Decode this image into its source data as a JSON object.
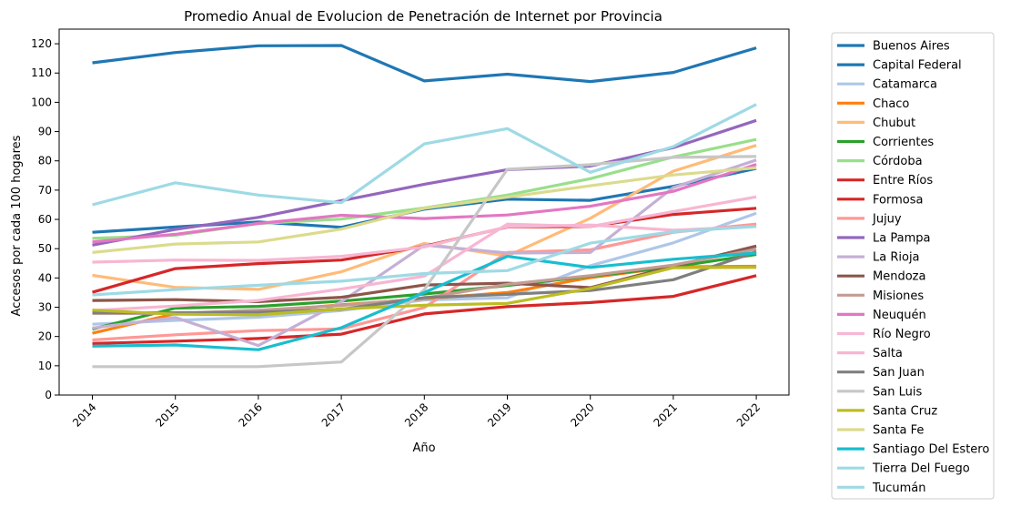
{
  "chart_data": {
    "type": "line",
    "title": "Promedio Anual de Evolucion de Penetración de Internet por Provincia",
    "xlabel": "Año",
    "ylabel": "Accesos por cada 100 hogares",
    "x": [
      "2014",
      "2015",
      "2016",
      "2017",
      "2018",
      "2019",
      "2020",
      "2021",
      "2022"
    ],
    "ylim": [
      0,
      125
    ],
    "yticks": [
      0,
      10,
      20,
      30,
      40,
      50,
      60,
      70,
      80,
      90,
      100,
      110,
      120
    ],
    "grid": false,
    "legend_position": "outside-right",
    "series": [
      {
        "name": "Buenos Aires",
        "color": "#1f77b4",
        "values": [
          55.6,
          57.4,
          59.1,
          57.3,
          63.5,
          66.9,
          66.5,
          71.3,
          77.4
        ]
      },
      {
        "name": "Capital Federal",
        "color": "#1f77b4",
        "values": [
          113.5,
          117.0,
          119.3,
          119.4,
          107.3,
          109.6,
          107.1,
          110.2,
          118.6
        ]
      },
      {
        "name": "Catamarca",
        "color": "#aec7e8",
        "values": [
          24.2,
          25.5,
          26.6,
          28.9,
          32.5,
          33.2,
          44.2,
          52.0,
          62.1
        ]
      },
      {
        "name": "Chaco",
        "color": "#ff7f0e",
        "values": [
          21.1,
          27.8,
          28.5,
          30.8,
          32.9,
          35.0,
          40.1,
          43.8,
          44.0
        ]
      },
      {
        "name": "Chubut",
        "color": "#ffbb78",
        "values": [
          40.9,
          36.8,
          36.1,
          42.1,
          51.8,
          47.5,
          60.4,
          76.5,
          85.3
        ]
      },
      {
        "name": "Corrientes",
        "color": "#2ca02c",
        "values": [
          22.5,
          29.7,
          30.3,
          32.1,
          34.5,
          37.4,
          40.6,
          43.8,
          48.0
        ]
      },
      {
        "name": "Córdoba",
        "color": "#98df8a",
        "values": [
          53.5,
          54.6,
          58.6,
          60.1,
          63.9,
          68.3,
          73.9,
          81.3,
          87.3
        ]
      },
      {
        "name": "Entre Ríos",
        "color": "#d62728",
        "values": [
          35.1,
          43.2,
          44.9,
          46.1,
          50.8,
          57.4,
          57.6,
          61.7,
          63.8
        ]
      },
      {
        "name": "Formosa",
        "color": "#d62728",
        "values": [
          17.6,
          18.4,
          19.3,
          20.8,
          27.7,
          30.2,
          31.6,
          33.7,
          40.8
        ]
      },
      {
        "name": "Jujuy",
        "color": "#ff9896",
        "values": [
          18.8,
          20.6,
          22.0,
          22.6,
          29.9,
          48.7,
          49.6,
          55.6,
          58.4
        ]
      },
      {
        "name": "La Pampa",
        "color": "#9467bd",
        "values": [
          51.2,
          56.6,
          60.7,
          66.4,
          72.0,
          77.0,
          78.2,
          84.5,
          93.8
        ]
      },
      {
        "name": "La Rioja",
        "color": "#c5b0d5",
        "values": [
          22.9,
          26.5,
          16.9,
          31.9,
          51.2,
          48.5,
          48.7,
          70.9,
          80.3
        ]
      },
      {
        "name": "Mendoza",
        "color": "#8c564b",
        "values": [
          32.3,
          32.6,
          31.9,
          33.4,
          37.6,
          38.2,
          36.7,
          44.0,
          50.9
        ]
      },
      {
        "name": "Misiones",
        "color": "#c49c94",
        "values": [
          27.9,
          27.9,
          29.0,
          30.6,
          33.1,
          37.8,
          40.8,
          44.4,
          49.8
        ]
      },
      {
        "name": "Neuquén",
        "color": "#e377c2",
        "values": [
          52.3,
          54.9,
          58.6,
          61.4,
          60.3,
          61.5,
          64.5,
          69.6,
          78.8
        ]
      },
      {
        "name": "Río Negro",
        "color": "#f7b6d2",
        "values": [
          28.9,
          30.4,
          32.3,
          36.2,
          40.6,
          58.4,
          57.6,
          62.7,
          67.7
        ]
      },
      {
        "name": "Salta",
        "color": "#f7b6d2",
        "values": [
          45.4,
          46.1,
          46.0,
          47.4,
          50.6,
          57.5,
          58.1,
          56.3,
          57.6
        ]
      },
      {
        "name": "San Juan",
        "color": "#7f7f7f",
        "values": [
          28.1,
          28.1,
          28.3,
          29.3,
          33.3,
          34.4,
          35.7,
          39.4,
          48.9
        ]
      },
      {
        "name": "San Luis",
        "color": "#c7c7c7",
        "values": [
          9.7,
          9.7,
          9.7,
          11.3,
          36.0,
          77.1,
          78.7,
          81.2,
          81.5
        ]
      },
      {
        "name": "Santa Cruz",
        "color": "#bcbd22",
        "values": [
          29.0,
          27.6,
          27.4,
          29.4,
          30.7,
          31.3,
          36.4,
          43.5,
          43.6
        ]
      },
      {
        "name": "Santa Fe",
        "color": "#dbdb8d",
        "values": [
          48.7,
          51.6,
          52.3,
          56.7,
          63.8,
          67.6,
          71.5,
          75.2,
          77.6
        ]
      },
      {
        "name": "Santiago Del Estero",
        "color": "#17becf",
        "values": [
          16.7,
          17.1,
          15.5,
          23.0,
          35.0,
          47.4,
          43.6,
          46.4,
          48.5
        ]
      },
      {
        "name": "Tierra Del Fuego",
        "color": "#9edae5",
        "values": [
          34.2,
          36.0,
          37.5,
          38.9,
          41.5,
          42.5,
          51.9,
          55.8,
          57.6
        ]
      },
      {
        "name": "Tucumán",
        "color": "#9edae5",
        "values": [
          65.0,
          72.5,
          68.3,
          65.7,
          85.8,
          91.0,
          76.1,
          84.9,
          99.3
        ]
      }
    ]
  }
}
